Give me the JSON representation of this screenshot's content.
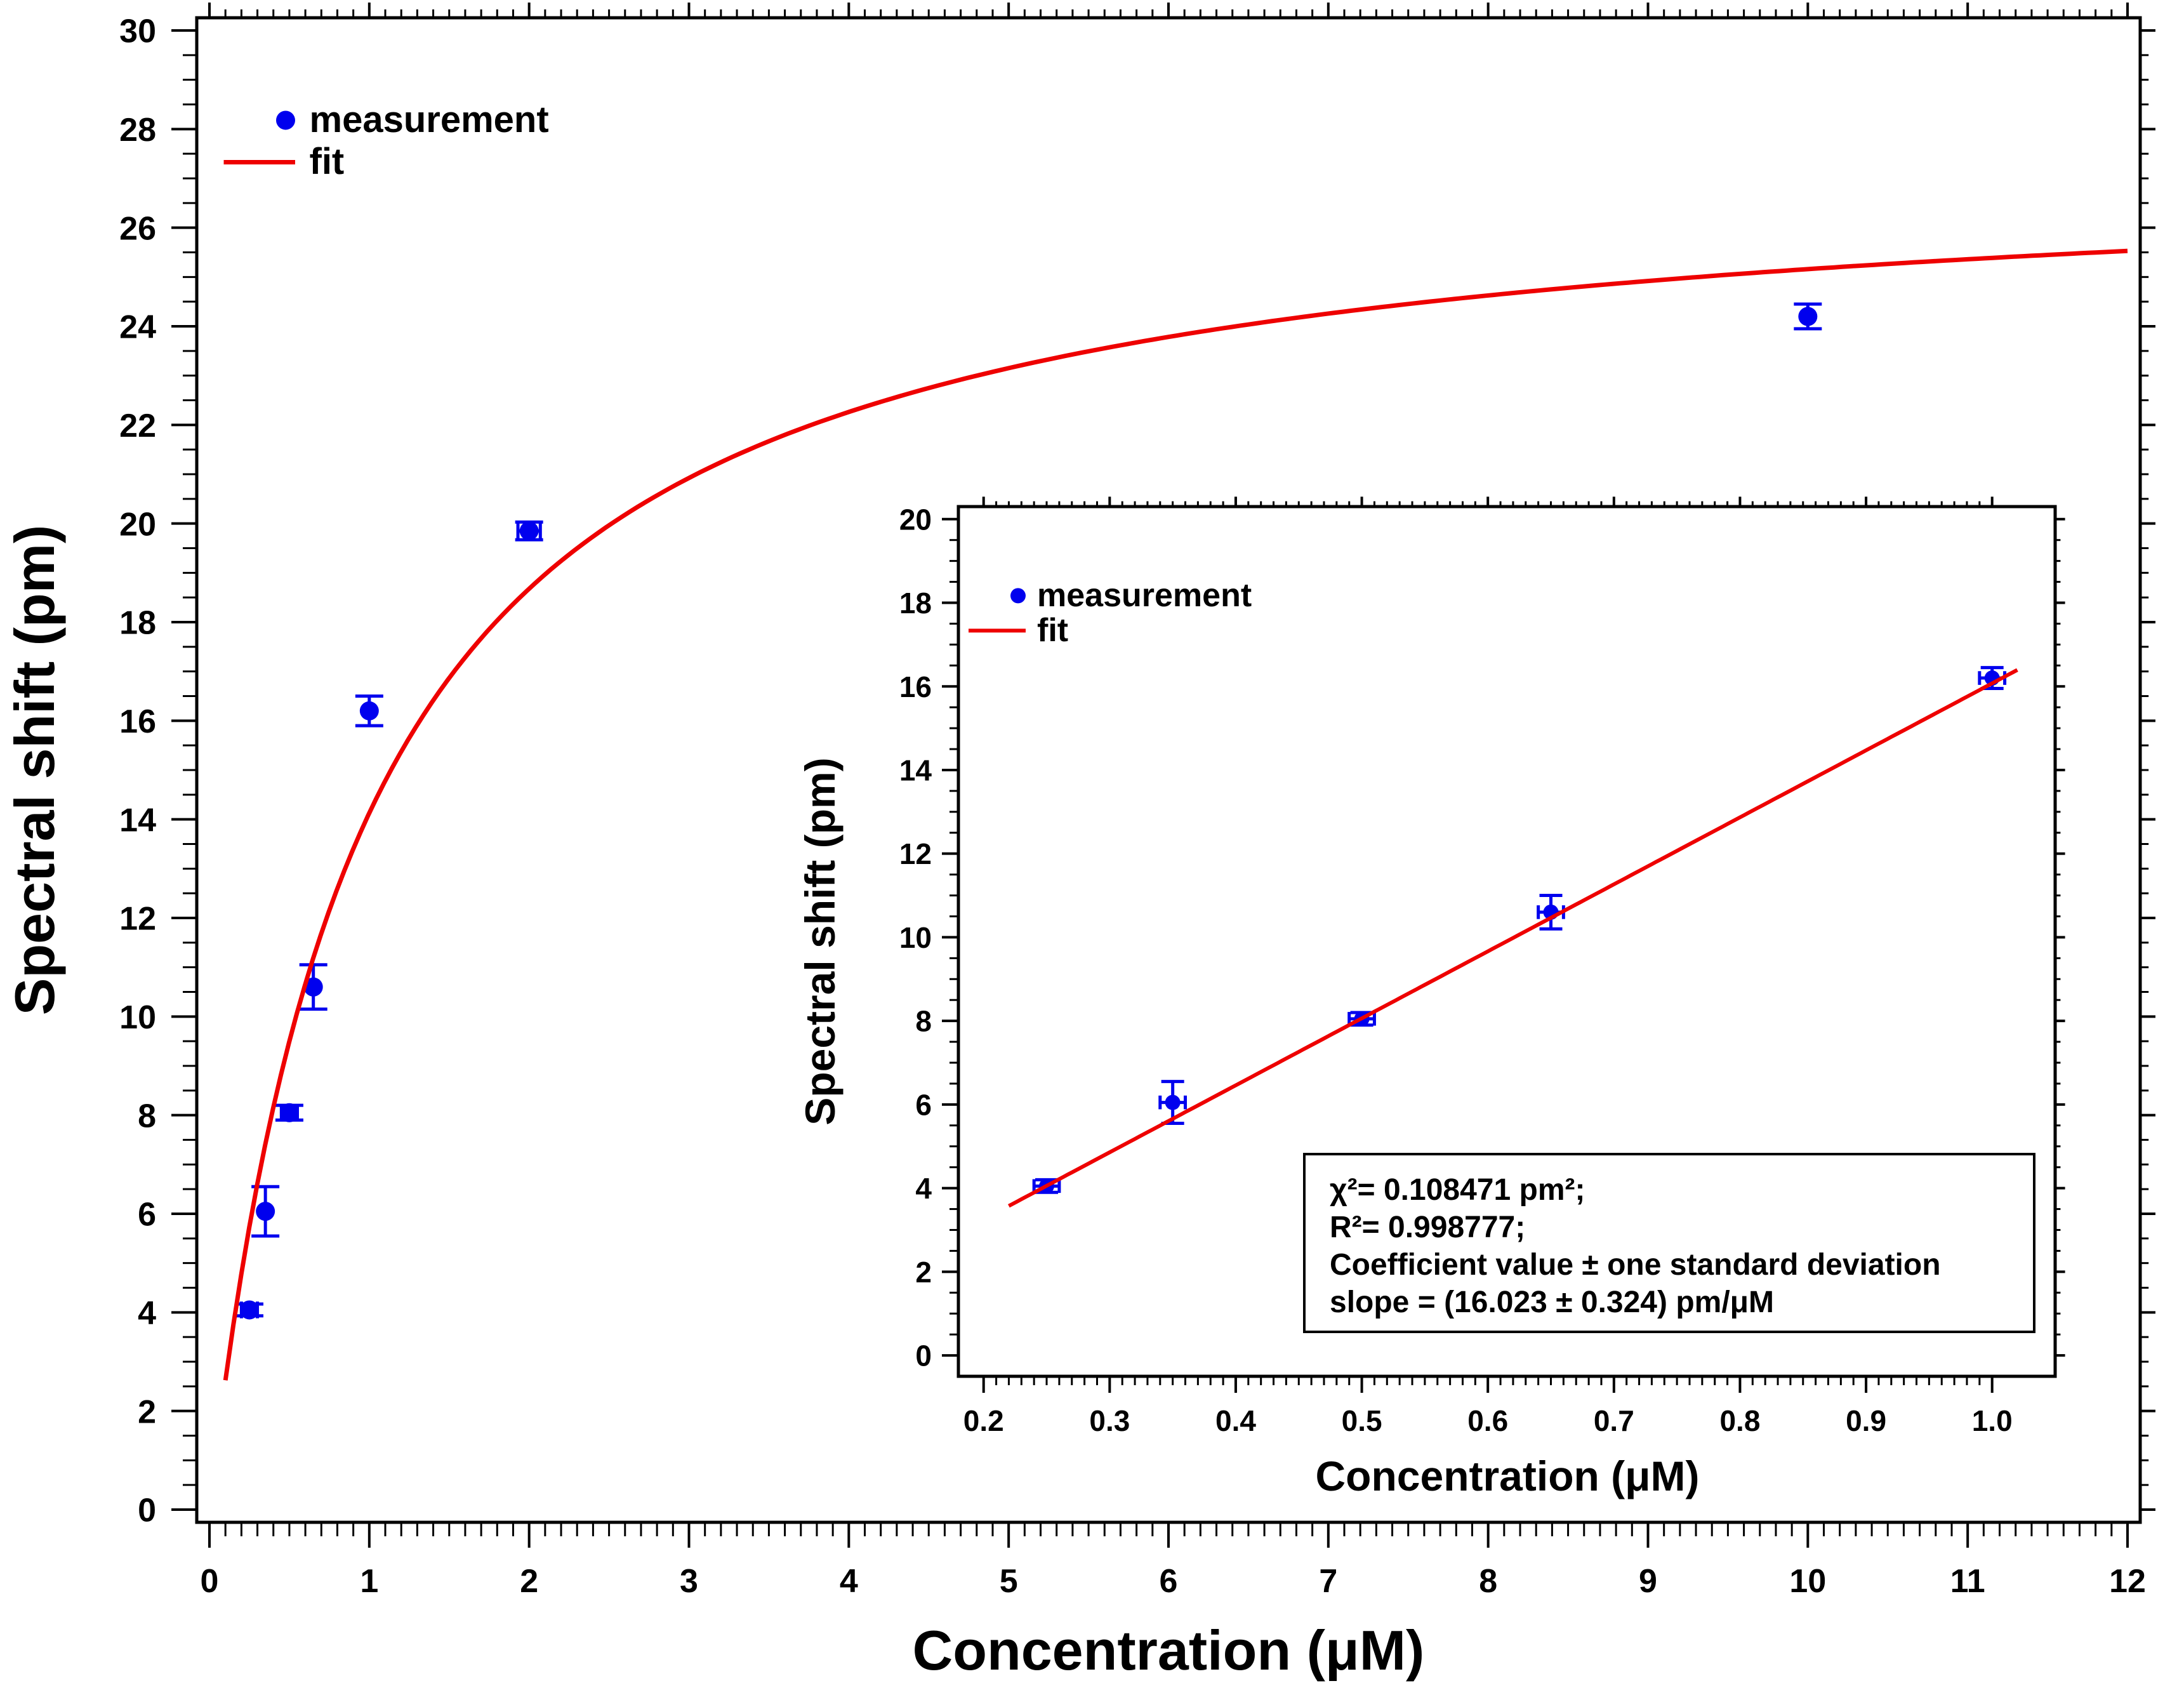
{
  "chart_data": [
    {
      "id": "main",
      "type": "scatter",
      "xlabel": "Concentration (μM)",
      "ylabel": "Spectral shift (pm)",
      "xlim": [
        0,
        12
      ],
      "ylim": [
        0,
        30
      ],
      "x_ticks": [
        0,
        1,
        2,
        3,
        4,
        5,
        6,
        7,
        8,
        9,
        10,
        11,
        12
      ],
      "y_ticks": [
        0,
        2,
        4,
        6,
        8,
        10,
        12,
        14,
        16,
        18,
        20,
        22,
        24,
        26,
        28,
        30
      ],
      "x_tick_labels": [
        "0",
        "1",
        "2",
        "3",
        "4",
        "5",
        "6",
        "7",
        "8",
        "9",
        "10",
        "11",
        "12"
      ],
      "y_tick_labels": [
        "0",
        "2",
        "4",
        "6",
        "8",
        "10",
        "12",
        "14",
        "16",
        "18",
        "20",
        "22",
        "24",
        "26",
        "28",
        "30"
      ],
      "series": [
        {
          "name": "measurement",
          "kind": "points",
          "color": "#0000ee",
          "x": [
            0.25,
            0.35,
            0.5,
            0.65,
            1.0,
            2.0,
            10.0
          ],
          "y": [
            4.05,
            6.05,
            8.05,
            10.6,
            16.2,
            19.85,
            24.2
          ],
          "yerr": [
            0.12,
            0.5,
            0.15,
            0.45,
            0.3,
            0.18,
            0.25
          ],
          "xerr": [
            0.05,
            0.0,
            0.05,
            0.0,
            0.0,
            0.07,
            0.0
          ]
        },
        {
          "name": "fit",
          "kind": "line",
          "color": "#ee0000",
          "model": "langmuir",
          "bmax": 27.55,
          "kd": 0.95,
          "x_range": [
            0.1,
            12.0
          ]
        }
      ],
      "legend": {
        "position": "top-left",
        "entries": [
          "measurement",
          "fit"
        ]
      }
    },
    {
      "id": "inset",
      "type": "scatter",
      "xlabel": "Concentration (μM)",
      "ylabel": "Spectral shift (pm)",
      "xlim": [
        0.18,
        1.05
      ],
      "ylim": [
        -0.5,
        20.3
      ],
      "x_ticks": [
        0.2,
        0.3,
        0.4,
        0.5,
        0.6,
        0.7,
        0.8,
        0.9,
        1.0
      ],
      "y_ticks": [
        0,
        2,
        4,
        6,
        8,
        10,
        12,
        14,
        16,
        18,
        20
      ],
      "x_tick_labels": [
        "0.2",
        "0.3",
        "0.4",
        "0.5",
        "0.6",
        "0.7",
        "0.8",
        "0.9",
        "1.0"
      ],
      "y_tick_labels": [
        "0",
        "2",
        "4",
        "6",
        "8",
        "10",
        "12",
        "14",
        "16",
        "18",
        "20"
      ],
      "series": [
        {
          "name": "measurement",
          "kind": "points",
          "color": "#0000ee",
          "x": [
            0.25,
            0.35,
            0.5,
            0.65,
            1.0
          ],
          "y": [
            4.05,
            6.05,
            8.05,
            10.6,
            16.2
          ],
          "yerr": [
            0.15,
            0.5,
            0.15,
            0.4,
            0.25
          ],
          "xerr": [
            0.01,
            0.01,
            0.01,
            0.01,
            0.01
          ]
        },
        {
          "name": "fit",
          "kind": "line",
          "color": "#ee0000",
          "model": "linear",
          "slope": 16.023,
          "intercept": 0.05,
          "x_range": [
            0.22,
            1.02
          ]
        }
      ],
      "legend": {
        "position": "top-left",
        "entries": [
          "measurement",
          "fit"
        ]
      },
      "annotation": {
        "line1": "χ²= 0.108471 pm²;",
        "line2": "R²= 0.998777;",
        "line3": "Coefficient value ± one standard deviation",
        "line4": "slope = (16.023 ± 0.324) pm/μM"
      }
    }
  ]
}
